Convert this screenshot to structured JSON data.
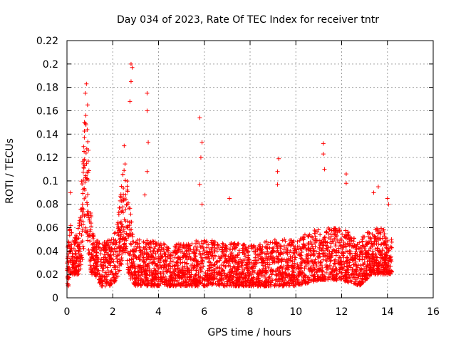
{
  "chart_data": {
    "type": "scatter",
    "title": "Day 034 of 2023, Rate Of TEC Index for receiver tntr",
    "xlabel": "GPS time / hours",
    "ylabel": "ROTI / TECUs",
    "xlim": [
      0,
      16
    ],
    "ylim": [
      0,
      0.22
    ],
    "x_ticks": [
      0,
      2,
      4,
      6,
      8,
      10,
      12,
      14,
      16
    ],
    "y_ticks": [
      0,
      0.02,
      0.04,
      0.06,
      0.08,
      0.1,
      0.12,
      0.14,
      0.16,
      0.18,
      0.2,
      0.22
    ],
    "x_tick_labels": [
      "0",
      "2",
      "4",
      "6",
      "8",
      "10",
      "12",
      "14",
      "16"
    ],
    "y_tick_labels": [
      "0",
      "0.02",
      "0.04",
      "0.06",
      "0.08",
      "0.1",
      "0.12",
      "0.14",
      "0.16",
      "0.18",
      "0.2",
      "0.22"
    ],
    "grid": true,
    "marker": "plus",
    "color": "#ff0000",
    "data_profile": {
      "time_range": [
        0,
        14.2
      ],
      "envelope": [
        [
          0.0,
          0.01,
          0.05
        ],
        [
          0.1,
          0.01,
          0.06
        ],
        [
          0.2,
          0.02,
          0.07
        ],
        [
          0.3,
          0.02,
          0.05
        ],
        [
          0.5,
          0.02,
          0.06
        ],
        [
          0.7,
          0.03,
          0.12
        ],
        [
          0.8,
          0.06,
          0.17
        ],
        [
          0.9,
          0.05,
          0.16
        ],
        [
          1.0,
          0.02,
          0.08
        ],
        [
          1.2,
          0.02,
          0.05
        ],
        [
          1.5,
          0.01,
          0.05
        ],
        [
          2.0,
          0.01,
          0.05
        ],
        [
          2.3,
          0.02,
          0.08
        ],
        [
          2.5,
          0.04,
          0.12
        ],
        [
          2.7,
          0.02,
          0.09
        ],
        [
          2.9,
          0.01,
          0.05
        ],
        [
          3.5,
          0.01,
          0.05
        ],
        [
          4.5,
          0.01,
          0.045
        ],
        [
          6.0,
          0.01,
          0.05
        ],
        [
          8.0,
          0.01,
          0.045
        ],
        [
          9.0,
          0.01,
          0.05
        ],
        [
          10.0,
          0.01,
          0.05
        ],
        [
          11.0,
          0.015,
          0.06
        ],
        [
          12.0,
          0.015,
          0.06
        ],
        [
          12.8,
          0.01,
          0.05
        ],
        [
          13.3,
          0.02,
          0.06
        ],
        [
          13.8,
          0.02,
          0.06
        ],
        [
          14.2,
          0.02,
          0.05
        ]
      ],
      "outliers": [
        [
          0.15,
          0.09
        ],
        [
          0.8,
          0.175
        ],
        [
          0.85,
          0.183
        ],
        [
          0.9,
          0.165
        ],
        [
          2.5,
          0.13
        ],
        [
          2.8,
          0.2
        ],
        [
          2.85,
          0.197
        ],
        [
          2.8,
          0.185
        ],
        [
          2.75,
          0.168
        ],
        [
          3.5,
          0.175
        ],
        [
          3.5,
          0.16
        ],
        [
          3.55,
          0.133
        ],
        [
          3.5,
          0.108
        ],
        [
          3.4,
          0.088
        ],
        [
          5.8,
          0.154
        ],
        [
          5.9,
          0.133
        ],
        [
          5.85,
          0.12
        ],
        [
          5.8,
          0.097
        ],
        [
          5.9,
          0.08
        ],
        [
          7.1,
          0.085
        ],
        [
          9.25,
          0.119
        ],
        [
          9.2,
          0.108
        ],
        [
          9.2,
          0.097
        ],
        [
          11.2,
          0.132
        ],
        [
          11.2,
          0.123
        ],
        [
          11.25,
          0.11
        ],
        [
          12.2,
          0.106
        ],
        [
          12.2,
          0.098
        ],
        [
          13.6,
          0.095
        ],
        [
          13.4,
          0.09
        ],
        [
          14.0,
          0.085
        ],
        [
          14.05,
          0.08
        ]
      ]
    }
  }
}
